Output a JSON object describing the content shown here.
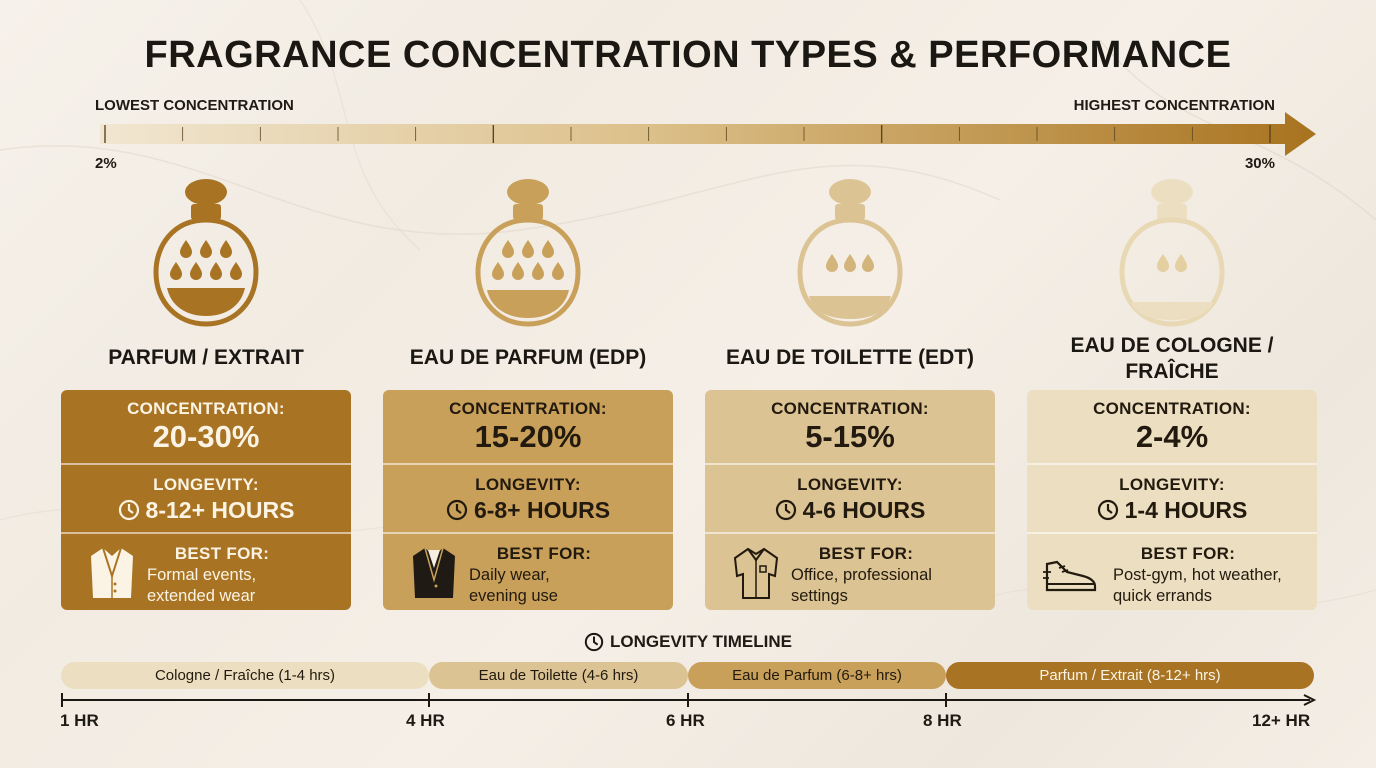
{
  "title": "FRAGRANCE CONCENTRATION TYPES & PERFORMANCE",
  "scale": {
    "low_label": "LOWEST CONCENTRATION",
    "high_label": "HIGHEST CONCENTRATION",
    "low_value": "2%",
    "high_value": "30%"
  },
  "types": [
    {
      "name": "PARFUM / EXTRAIT",
      "concentration_label": "CONCENTRATION:",
      "concentration": "20-30%",
      "longevity_label": "LONGEVITY:",
      "longevity": "8-12+ HOURS",
      "best_for_label": "BEST FOR:",
      "best_for_line1": "Formal events,",
      "best_for_line2": "extended wear",
      "icon": "tuxedo-jacket-icon",
      "color": "#a87424"
    },
    {
      "name": "EAU DE PARFUM (EDP)",
      "concentration_label": "CONCENTRATION:",
      "concentration": "15-20%",
      "longevity_label": "LONGEVITY:",
      "longevity": "6-8+ HOURS",
      "best_for_label": "BEST FOR:",
      "best_for_line1": "Daily wear,",
      "best_for_line2": "evening use",
      "icon": "blazer-icon",
      "color": "#c9a05a"
    },
    {
      "name": "EAU DE TOILETTE (EDT)",
      "concentration_label": "CONCENTRATION:",
      "concentration": "5-15%",
      "longevity_label": "LONGEVITY:",
      "longevity": "4-6 HOURS",
      "best_for_label": "BEST FOR:",
      "best_for_line1": "Office, professional",
      "best_for_line2": "settings",
      "icon": "shirt-icon",
      "color": "#dcc394"
    },
    {
      "name_line1": "EAU DE COLOGNE /",
      "name_line2": "FRAÎCHE",
      "concentration_label": "CONCENTRATION:",
      "concentration": "2-4%",
      "longevity_label": "LONGEVITY:",
      "longevity": "1-4 HOURS",
      "best_for_label": "BEST FOR:",
      "best_for_line1": "Post-gym, hot weather,",
      "best_for_line2": "quick errands",
      "icon": "sneaker-icon",
      "color": "#ecdfc1"
    }
  ],
  "timeline": {
    "title": "LONGEVITY TIMELINE",
    "segments": [
      {
        "label": "Cologne / Fraîche (1-4 hrs)",
        "color": "#ecdfc1"
      },
      {
        "label": "Eau de Toilette (4-6 hrs)",
        "color": "#dcc394"
      },
      {
        "label": "Eau de Parfum (6-8+ hrs)",
        "color": "#c9a05a"
      },
      {
        "label": "Parfum / Extrait (8-12+ hrs)",
        "color": "#a87424"
      }
    ],
    "ticks": [
      "1 HR",
      "4 HR",
      "6 HR",
      "8 HR",
      "12+ HR"
    ]
  }
}
